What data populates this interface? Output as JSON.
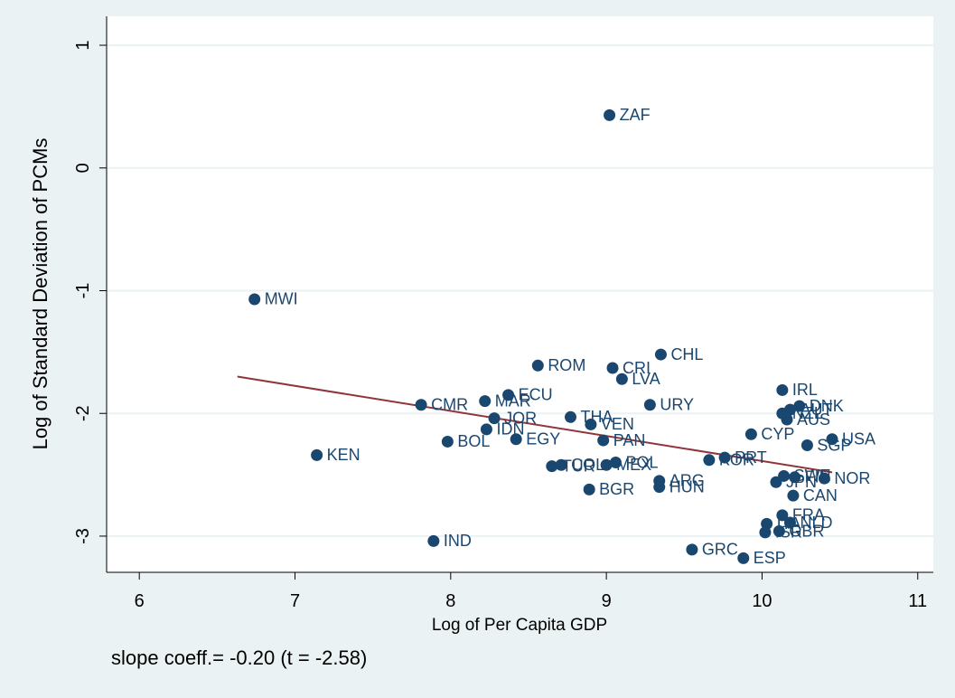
{
  "chart_data": {
    "type": "scatter",
    "x_label": "Log of Per Capita GDP",
    "y_label": "Log of Standard Deviation of PCMs",
    "annotation": "slope coeff.= -0.20 (t = -2.58)",
    "xlim": [
      5.79,
      11.1
    ],
    "ylim": [
      -3.295,
      1.236
    ],
    "xticks": [
      6,
      7,
      8,
      9,
      10,
      11
    ],
    "yticks": [
      -3,
      -2,
      -1,
      0,
      1
    ],
    "grid": true,
    "color": "#1a476f",
    "fit_color": "#90353b",
    "point_labels": [
      "ZAF",
      "MWI",
      "CHL",
      "ROM",
      "CRI",
      "LVA",
      "IRL",
      "ECU",
      "MAR",
      "CMR",
      "URY",
      "DNK",
      "AUT",
      "NZL",
      "AUS",
      "JOR",
      "THA",
      "VEN",
      "IDN",
      "CYP",
      "EGY",
      "BOL",
      "PAN",
      "USA",
      "SGP",
      "KEN",
      "PRT",
      "KOR",
      "POL",
      "MEX",
      "COL",
      "TUR",
      "SWE",
      "NOR",
      "FIN",
      "JPN",
      "ARG",
      "HUN",
      "BGR",
      "CAN",
      "FRA",
      "NLD",
      "ITA",
      "GBR",
      "ISR",
      "IND",
      "GRC",
      "ESP"
    ],
    "x": [
      9.02,
      6.74,
      9.35,
      8.56,
      9.04,
      9.1,
      10.13,
      8.37,
      8.22,
      7.81,
      9.28,
      10.24,
      10.18,
      10.13,
      10.16,
      8.28,
      8.77,
      8.9,
      8.23,
      9.93,
      8.42,
      7.98,
      8.98,
      10.45,
      10.29,
      7.14,
      9.76,
      9.66,
      9.06,
      9.0,
      8.71,
      8.65,
      10.14,
      10.4,
      10.21,
      10.09,
      9.34,
      9.34,
      8.89,
      10.2,
      10.13,
      10.18,
      10.03,
      10.11,
      10.02,
      7.89,
      9.55,
      9.88
    ],
    "y": [
      0.43,
      -1.07,
      -1.52,
      -1.61,
      -1.63,
      -1.72,
      -1.81,
      -1.85,
      -1.9,
      -1.93,
      -1.93,
      -1.94,
      -1.97,
      -2.0,
      -2.05,
      -2.04,
      -2.03,
      -2.09,
      -2.13,
      -2.17,
      -2.21,
      -2.23,
      -2.22,
      -2.21,
      -2.26,
      -2.34,
      -2.36,
      -2.38,
      -2.4,
      -2.42,
      -2.42,
      -2.43,
      -2.51,
      -2.53,
      -2.52,
      -2.56,
      -2.55,
      -2.6,
      -2.62,
      -2.67,
      -2.83,
      -2.89,
      -2.9,
      -2.96,
      -2.97,
      -3.04,
      -3.11,
      -3.18
    ],
    "fit_line": {
      "x": [
        6.63,
        10.45
      ],
      "y": [
        -1.7,
        -2.48
      ]
    }
  }
}
